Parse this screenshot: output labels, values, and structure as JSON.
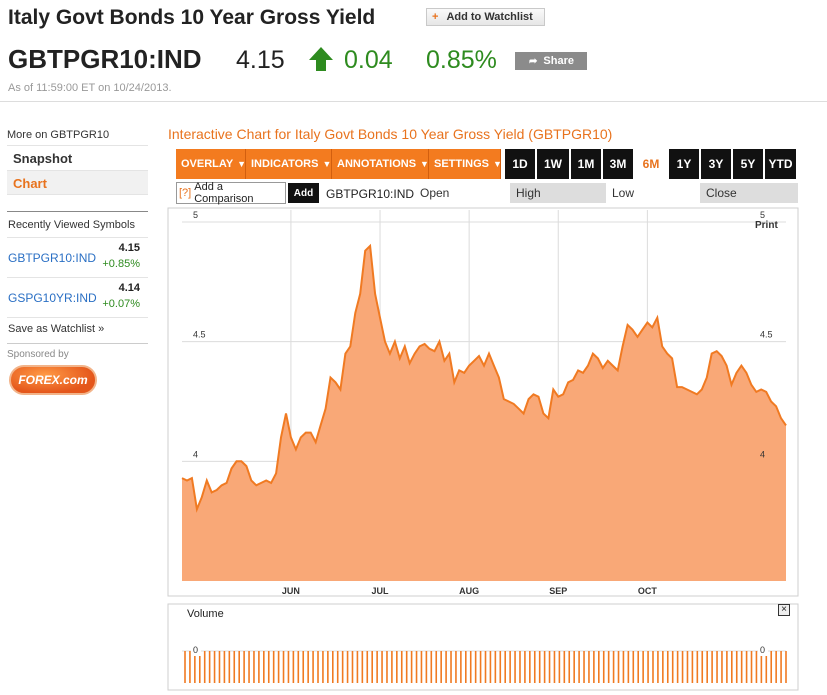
{
  "header": {
    "title": "Italy Govt Bonds 10 Year Gross Yield",
    "watchlist_label": "Add to Watchlist",
    "watchlist_plus": "+",
    "ticker": "GBTPGR10:IND",
    "price": "4.15",
    "change": "0.04",
    "change_pct": "0.85%",
    "share_label": "Share",
    "as_of": "As of 11:59:00 ET on 10/24/2013.",
    "up_color": "#2e8b1f",
    "accent_color": "#e8731e"
  },
  "sidebar": {
    "more_on": "More on GBTPGR10",
    "nav": [
      {
        "label": "Snapshot",
        "active": false
      },
      {
        "label": "Chart",
        "active": true
      }
    ],
    "recent_title": "Recently Viewed Symbols",
    "recent": [
      {
        "symbol": "GBTPGR10:IND",
        "price": "4.15",
        "change": "+0.85%"
      },
      {
        "symbol": "GSPG10YR:IND",
        "price": "4.14",
        "change": "+0.07%"
      }
    ],
    "save_watchlist": "Save as Watchlist »",
    "sponsored": "Sponsored by",
    "sponsor_logo_text": "FOREX.com"
  },
  "chart_panel": {
    "title": "Interactive Chart for Italy Govt Bonds 10 Year Gross Yield (GBTPGR10)",
    "menus": [
      "OVERLAY",
      "INDICATORS",
      "ANNOTATIONS",
      "SETTINGS"
    ],
    "periods": [
      "1D",
      "1W",
      "1M",
      "3M",
      "6M",
      "1Y",
      "3Y",
      "5Y",
      "YTD"
    ],
    "active_period": "6M",
    "compare_hint": "[?]",
    "compare_placeholder": "Add a Comparison",
    "add_label": "Add",
    "symbol": "GBTPGR10:IND",
    "ohlc_labels": [
      "Open",
      "High",
      "Low",
      "Close"
    ],
    "print_label": "Print",
    "volume_label": "Volume",
    "close_icon": "×"
  },
  "chart_data": {
    "type": "area",
    "series": [
      {
        "values": [
          3.93,
          3.92,
          3.93,
          3.8,
          3.85,
          3.92,
          3.87,
          3.88,
          3.9,
          3.91,
          3.97,
          4.0,
          4.0,
          3.98,
          3.92,
          3.9,
          3.91,
          3.92,
          3.91,
          3.95,
          4.1,
          4.2,
          4.1,
          4.05,
          4.1,
          4.12,
          4.12,
          4.08,
          4.15,
          4.22,
          4.35,
          4.33,
          4.3,
          4.45,
          4.48,
          4.62,
          4.7,
          4.88,
          4.9,
          4.7,
          4.6,
          4.5,
          4.45,
          4.5,
          4.43,
          4.48,
          4.41,
          4.45,
          4.48,
          4.49,
          4.47,
          4.46,
          4.5,
          4.42,
          4.45,
          4.33,
          4.38,
          4.37,
          4.4,
          4.42,
          4.44,
          4.4,
          4.45,
          4.4,
          4.35,
          4.26,
          4.25,
          4.24,
          4.22,
          4.2,
          4.26,
          4.28,
          4.27,
          4.2,
          4.18,
          4.3,
          4.27,
          4.28,
          4.33,
          4.34,
          4.38,
          4.37,
          4.4,
          4.45,
          4.43,
          4.39,
          4.42,
          4.4,
          4.38,
          4.48,
          4.57,
          4.55,
          4.52,
          4.55,
          4.58,
          4.56,
          4.6,
          4.48,
          4.45,
          4.43,
          4.31,
          4.31,
          4.3,
          4.29,
          4.28,
          4.3,
          4.35,
          4.45,
          4.46,
          4.44,
          4.4,
          4.32,
          4.37,
          4.4,
          4.37,
          4.32,
          4.29,
          4.3,
          4.29,
          4.25,
          4.23,
          4.18,
          4.15
        ]
      }
    ],
    "x_ticks": [
      "JUN",
      "JUL",
      "AUG",
      "SEP",
      "OCT"
    ],
    "y_ticks": [
      4,
      4.5,
      5
    ],
    "ylim": [
      3.5,
      5.05
    ],
    "fill_color": "#f9a877",
    "line_color": "#f07a22",
    "grid": true
  }
}
